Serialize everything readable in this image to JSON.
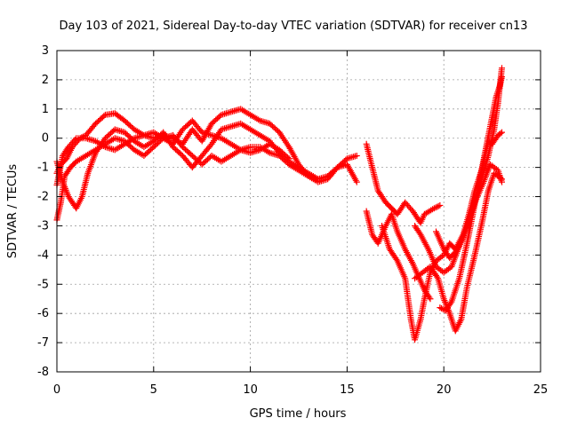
{
  "chart_data": {
    "type": "scatter",
    "title": "Day 103 of 2021, Sidereal Day-to-day VTEC variation (SDTVAR) for receiver cn13",
    "xlabel": "GPS time / hours",
    "ylabel": "SDTVAR / TECUs",
    "xlim": [
      0,
      25
    ],
    "ylim": [
      -8,
      3
    ],
    "xticks": [
      "0",
      "5",
      "10",
      "15",
      "20",
      "25"
    ],
    "yticks": [
      "3",
      "2",
      "1",
      "0",
      "-1",
      "-2",
      "-3",
      "-4",
      "-5",
      "-6",
      "-7",
      "-8"
    ],
    "grid": true,
    "marker": "plus",
    "color": "#ff0000",
    "series": [
      {
        "points": [
          [
            0.0,
            -1.2
          ],
          [
            0.2,
            -0.9
          ],
          [
            0.5,
            -0.7
          ],
          [
            0.8,
            -0.3
          ],
          [
            1.2,
            0.0
          ],
          [
            1.5,
            0.1
          ],
          [
            2.0,
            0.5
          ],
          [
            2.5,
            0.8
          ],
          [
            3.0,
            0.85
          ],
          [
            3.5,
            0.6
          ],
          [
            4.0,
            0.3
          ],
          [
            4.5,
            0.1
          ],
          [
            5.0,
            0.0
          ],
          [
            5.5,
            0.1
          ],
          [
            6.0,
            0.0
          ],
          [
            6.5,
            -0.2
          ],
          [
            7.0,
            0.3
          ],
          [
            7.5,
            -0.1
          ],
          [
            8.0,
            0.5
          ],
          [
            8.5,
            0.8
          ],
          [
            9.0,
            0.9
          ],
          [
            9.5,
            1.0
          ],
          [
            10.0,
            0.8
          ],
          [
            10.5,
            0.6
          ],
          [
            11.0,
            0.5
          ],
          [
            11.5,
            0.2
          ],
          [
            12.0,
            -0.3
          ],
          [
            12.5,
            -0.9
          ],
          [
            13.0,
            -1.3
          ],
          [
            13.5,
            -1.5
          ],
          [
            14.0,
            -1.4
          ],
          [
            14.5,
            -1.0
          ],
          [
            15.0,
            -0.7
          ],
          [
            15.5,
            -0.6
          ]
        ]
      },
      {
        "points": [
          [
            0.0,
            -0.8
          ],
          [
            0.3,
            -1.5
          ],
          [
            0.6,
            -2.0
          ],
          [
            1.0,
            -2.4
          ],
          [
            1.3,
            -2.0
          ],
          [
            1.6,
            -1.2
          ],
          [
            2.0,
            -0.5
          ],
          [
            2.5,
            0.0
          ],
          [
            3.0,
            0.3
          ],
          [
            3.5,
            0.2
          ],
          [
            4.0,
            -0.1
          ],
          [
            4.5,
            -0.3
          ],
          [
            5.0,
            -0.1
          ],
          [
            5.5,
            0.2
          ],
          [
            6.0,
            -0.3
          ],
          [
            6.5,
            -0.6
          ],
          [
            7.0,
            -1.0
          ],
          [
            7.5,
            -0.6
          ],
          [
            8.0,
            -0.2
          ],
          [
            8.5,
            0.3
          ],
          [
            9.0,
            0.4
          ],
          [
            9.5,
            0.5
          ],
          [
            10.0,
            0.3
          ],
          [
            10.5,
            0.1
          ],
          [
            11.0,
            -0.1
          ],
          [
            11.5,
            -0.5
          ],
          [
            12.0,
            -0.8
          ],
          [
            12.5,
            -1.0
          ],
          [
            13.0,
            -1.2
          ],
          [
            13.5,
            -1.4
          ],
          [
            14.0,
            -1.3
          ],
          [
            14.5,
            -1.0
          ],
          [
            15.0,
            -0.9
          ],
          [
            15.5,
            -1.5
          ]
        ]
      },
      {
        "points": [
          [
            0.0,
            -2.8
          ],
          [
            0.2,
            -2.2
          ],
          [
            0.4,
            -1.3
          ],
          [
            0.7,
            -1.0
          ],
          [
            1.0,
            -0.8
          ],
          [
            1.5,
            -0.6
          ],
          [
            2.0,
            -0.4
          ],
          [
            2.5,
            -0.2
          ],
          [
            3.0,
            0.0
          ],
          [
            3.5,
            -0.1
          ],
          [
            4.0,
            -0.4
          ],
          [
            4.5,
            -0.6
          ],
          [
            5.0,
            -0.3
          ],
          [
            5.5,
            0.0
          ],
          [
            6.0,
            0.1
          ],
          [
            6.5,
            -0.3
          ],
          [
            7.0,
            -0.6
          ],
          [
            7.5,
            -0.9
          ],
          [
            8.0,
            -0.6
          ],
          [
            8.5,
            -0.8
          ],
          [
            9.0,
            -0.6
          ],
          [
            9.5,
            -0.4
          ],
          [
            10.0,
            -0.3
          ],
          [
            10.5,
            -0.3
          ],
          [
            11.0,
            -0.5
          ],
          [
            11.5,
            -0.6
          ],
          [
            12.0,
            -0.9
          ],
          [
            12.5,
            -1.1
          ],
          [
            13.0,
            -1.3
          ],
          [
            13.5,
            -1.4
          ]
        ]
      },
      {
        "points": [
          [
            0.0,
            -1.6
          ],
          [
            0.3,
            -0.6
          ],
          [
            0.6,
            -0.3
          ],
          [
            1.0,
            0.0
          ],
          [
            1.5,
            0.0
          ],
          [
            2.0,
            -0.1
          ],
          [
            2.5,
            -0.3
          ],
          [
            3.0,
            -0.4
          ],
          [
            3.5,
            -0.2
          ],
          [
            4.0,
            0.0
          ],
          [
            4.5,
            0.1
          ],
          [
            5.0,
            0.2
          ],
          [
            5.5,
            0.0
          ],
          [
            6.0,
            -0.2
          ],
          [
            6.5,
            0.3
          ],
          [
            7.0,
            0.6
          ],
          [
            7.5,
            0.2
          ],
          [
            8.0,
            0.1
          ],
          [
            8.5,
            0.0
          ],
          [
            9.0,
            -0.2
          ],
          [
            9.5,
            -0.4
          ],
          [
            10.0,
            -0.5
          ],
          [
            10.5,
            -0.4
          ],
          [
            11.0,
            -0.2
          ],
          [
            11.5,
            -0.4
          ],
          [
            12.0,
            -0.7
          ]
        ]
      },
      {
        "points": [
          [
            16.0,
            -0.2
          ],
          [
            16.3,
            -1.0
          ],
          [
            16.6,
            -1.8
          ],
          [
            17.0,
            -2.2
          ],
          [
            17.3,
            -2.4
          ],
          [
            17.6,
            -2.6
          ],
          [
            18.0,
            -2.2
          ],
          [
            18.4,
            -2.5
          ],
          [
            18.8,
            -2.9
          ],
          [
            19.0,
            -2.6
          ],
          [
            19.5,
            -2.4
          ],
          [
            19.8,
            -2.3
          ]
        ]
      },
      {
        "points": [
          [
            16.0,
            -2.5
          ],
          [
            16.3,
            -3.3
          ],
          [
            16.6,
            -3.6
          ],
          [
            17.0,
            -3.0
          ],
          [
            17.3,
            -2.6
          ],
          [
            17.6,
            -3.2
          ],
          [
            18.0,
            -3.8
          ],
          [
            18.4,
            -4.3
          ],
          [
            18.8,
            -4.9
          ],
          [
            19.0,
            -5.2
          ],
          [
            19.3,
            -5.5
          ]
        ]
      },
      {
        "points": [
          [
            16.8,
            -3.0
          ],
          [
            17.2,
            -3.8
          ],
          [
            17.6,
            -4.2
          ],
          [
            18.0,
            -4.8
          ],
          [
            18.3,
            -6.2
          ],
          [
            18.5,
            -6.9
          ],
          [
            18.8,
            -6.2
          ],
          [
            19.0,
            -5.5
          ],
          [
            19.3,
            -4.6
          ],
          [
            19.6,
            -4.2
          ],
          [
            20.0,
            -4.0
          ],
          [
            20.3,
            -3.6
          ],
          [
            20.6,
            -3.8
          ],
          [
            21.0,
            -3.3
          ],
          [
            21.3,
            -2.6
          ],
          [
            21.6,
            -1.8
          ],
          [
            22.0,
            -1.0
          ],
          [
            22.3,
            -0.1
          ],
          [
            22.5,
            -0.2
          ],
          [
            22.8,
            0.1
          ],
          [
            23.0,
            0.2
          ]
        ]
      },
      {
        "points": [
          [
            18.5,
            -3.0
          ],
          [
            18.8,
            -3.3
          ],
          [
            19.2,
            -3.8
          ],
          [
            19.6,
            -4.4
          ],
          [
            20.0,
            -4.6
          ],
          [
            20.4,
            -4.4
          ],
          [
            20.8,
            -3.7
          ],
          [
            21.2,
            -3.0
          ],
          [
            21.6,
            -2.1
          ],
          [
            22.0,
            -1.3
          ],
          [
            22.3,
            -0.6
          ],
          [
            22.6,
            0.3
          ],
          [
            22.8,
            1.2
          ],
          [
            23.0,
            2.4
          ]
        ]
      },
      {
        "points": [
          [
            18.5,
            -4.8
          ],
          [
            18.9,
            -4.6
          ],
          [
            19.3,
            -4.4
          ],
          [
            19.7,
            -4.8
          ],
          [
            20.0,
            -5.5
          ],
          [
            20.3,
            -6.0
          ],
          [
            20.6,
            -6.6
          ],
          [
            20.9,
            -6.2
          ],
          [
            21.2,
            -5.1
          ],
          [
            21.6,
            -4.0
          ],
          [
            22.0,
            -2.8
          ],
          [
            22.3,
            -1.8
          ],
          [
            22.6,
            -1.2
          ],
          [
            23.0,
            -1.4
          ]
        ]
      },
      {
        "points": [
          [
            19.8,
            -5.8
          ],
          [
            20.1,
            -5.9
          ],
          [
            20.4,
            -5.6
          ],
          [
            20.8,
            -4.8
          ],
          [
            21.2,
            -3.6
          ],
          [
            21.5,
            -2.6
          ],
          [
            21.8,
            -1.6
          ],
          [
            22.1,
            -0.6
          ],
          [
            22.4,
            0.4
          ],
          [
            22.7,
            1.4
          ],
          [
            22.9,
            1.8
          ],
          [
            23.0,
            2.1
          ]
        ]
      },
      {
        "points": [
          [
            19.6,
            -3.2
          ],
          [
            20.0,
            -3.8
          ],
          [
            20.3,
            -4.1
          ],
          [
            20.6,
            -3.9
          ],
          [
            21.0,
            -3.4
          ],
          [
            21.3,
            -2.8
          ],
          [
            21.6,
            -2.2
          ],
          [
            22.0,
            -1.6
          ],
          [
            22.4,
            -0.9
          ],
          [
            22.8,
            -1.1
          ],
          [
            23.0,
            -1.5
          ]
        ]
      }
    ]
  }
}
